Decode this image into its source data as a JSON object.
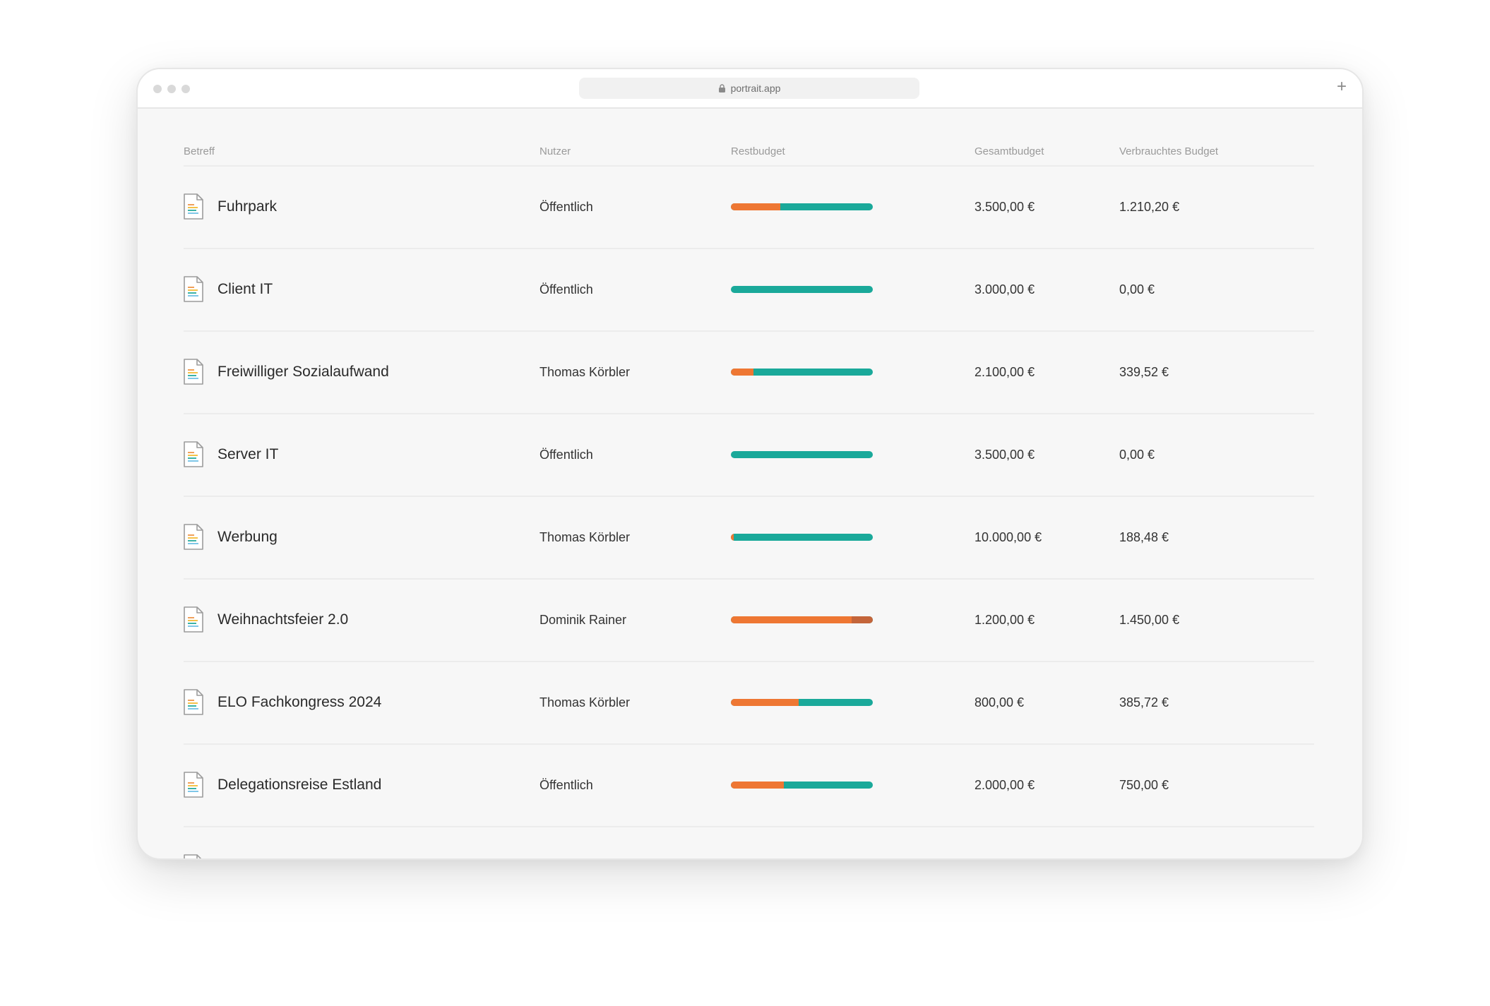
{
  "browser": {
    "url": "portrait.app"
  },
  "table": {
    "columns": {
      "subject": "Betreff",
      "user": "Nutzer",
      "remaining": "Restbudget",
      "total": "Gesamtbudget",
      "spent": "Verbrauchtes Budget"
    },
    "rows": [
      {
        "title": "Fuhrpark",
        "user": "Öffentlich",
        "total": "3.500,00 €",
        "spent": "1.210,20 €",
        "used_fraction": 0.35,
        "over_fraction": 0
      },
      {
        "title": "Client IT",
        "user": "Öffentlich",
        "total": "3.000,00 €",
        "spent": "0,00 €",
        "used_fraction": 0,
        "over_fraction": 0
      },
      {
        "title": "Freiwilliger Sozialaufwand",
        "user": "Thomas Körbler",
        "total": "2.100,00 €",
        "spent": "339,52 €",
        "used_fraction": 0.16,
        "over_fraction": 0
      },
      {
        "title": "Server IT",
        "user": "Öffentlich",
        "total": "3.500,00 €",
        "spent": "0,00 €",
        "used_fraction": 0,
        "over_fraction": 0
      },
      {
        "title": "Werbung",
        "user": "Thomas Körbler",
        "total": "10.000,00 €",
        "spent": "188,48 €",
        "used_fraction": 0.02,
        "over_fraction": 0
      },
      {
        "title": "Weihnachtsfeier 2.0",
        "user": "Dominik Rainer",
        "total": "1.200,00 €",
        "spent": "1.450,00 €",
        "used_fraction": 0.85,
        "over_fraction": 0.15
      },
      {
        "title": "ELO Fachkongress 2024",
        "user": "Thomas Körbler",
        "total": "800,00 €",
        "spent": "385,72 €",
        "used_fraction": 0.48,
        "over_fraction": 0
      },
      {
        "title": "Delegationsreise Estland",
        "user": "Öffentlich",
        "total": "2.000,00 €",
        "spent": "750,00 €",
        "used_fraction": 0.375,
        "over_fraction": 0
      }
    ]
  },
  "colors": {
    "remaining": "#1aa99a",
    "used": "#ee7733",
    "over": "#c4653a"
  }
}
